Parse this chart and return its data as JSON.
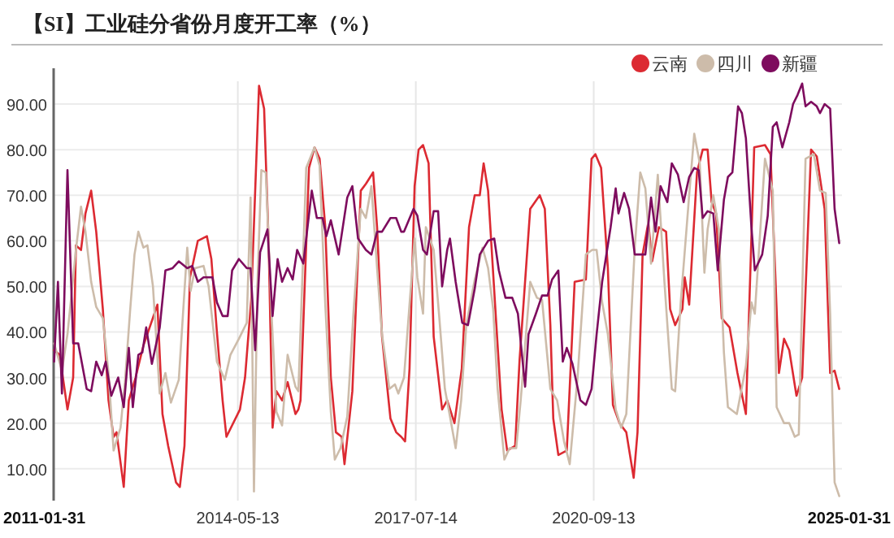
{
  "chart_data": {
    "type": "line",
    "title": "【SI】工业硅分省份月度开工率（%）",
    "xlim": [
      "2011-01-31",
      "2025-02-14"
    ],
    "ylim": [
      3,
      95
    ],
    "xticks": [
      "2011-01-31",
      "2014-05-13",
      "2017-07-14",
      "2020-09-13",
      "2025-01-31"
    ],
    "yticks": [
      {
        "value": 10,
        "label": "10.00"
      },
      {
        "value": 20,
        "label": "20.00"
      },
      {
        "value": 30,
        "label": "30.00"
      },
      {
        "value": 40,
        "label": "40.00"
      },
      {
        "value": 50,
        "label": "50.00"
      },
      {
        "value": 60,
        "label": "60.00"
      },
      {
        "value": 70,
        "label": "70.00"
      },
      {
        "value": 80,
        "label": "80.00"
      },
      {
        "value": 90,
        "label": "90.00"
      }
    ],
    "grid": true,
    "legend": "top right",
    "marker": "none",
    "line_style": "solid",
    "series": [
      {
        "name": "云南",
        "color": "#dc2a32",
        "x": [
          "2011-02-03",
          "2011-03-11",
          "2011-05-01",
          "2011-06-07",
          "2011-06-25",
          "2011-07-28",
          "2011-08-26",
          "2011-10-02",
          "2011-11-04",
          "2011-12-17",
          "2012-01-23",
          "2012-02-25",
          "2012-03-15",
          "2012-05-01",
          "2012-06-03",
          "2012-07-17",
          "2012-09-06",
          "2012-12-06",
          "2013-01-08",
          "2013-02-14",
          "2013-04-06",
          "2013-05-01",
          "2013-05-31",
          "2013-07-06",
          "2013-08-26",
          "2013-10-24",
          "2013-11-22",
          "2013-12-28",
          "2014-02-03",
          "2014-02-28",
          "2014-05-27",
          "2014-06-29",
          "2014-08-08",
          "2014-09-28",
          "2014-10-31",
          "2014-11-29",
          "2014-12-25",
          "2015-01-19",
          "2015-02-25",
          "2015-04-02",
          "2015-05-23",
          "2015-06-11",
          "2015-06-25",
          "2015-08-19",
          "2015-09-24",
          "2015-10-27",
          "2015-12-03",
          "2016-01-08",
          "2016-02-10",
          "2016-03-19",
          "2016-04-06",
          "2016-05-27",
          "2016-07-21",
          "2016-08-23",
          "2016-10-09",
          "2016-11-04",
          "2016-12-06",
          "2017-01-30",
          "2017-03-08",
          "2017-04-10",
          "2017-05-05",
          "2017-06-03",
          "2017-07-06",
          "2017-08-01",
          "2017-08-30",
          "2017-10-05",
          "2017-11-07",
          "2018-01-01",
          "2018-02-03",
          "2018-03-22",
          "2018-05-09",
          "2018-06-25",
          "2018-08-01",
          "2018-09-03",
          "2018-09-28",
          "2018-10-27",
          "2018-12-17",
          "2019-01-23",
          "2019-02-28",
          "2019-04-21",
          "2019-05-20",
          "2019-07-28",
          "2019-09-28",
          "2019-10-31",
          "2019-12-06",
          "2019-12-25",
          "2020-01-27",
          "2020-03-22",
          "2020-05-12",
          "2020-07-24",
          "2020-08-30",
          "2020-09-24",
          "2020-10-31",
          "2020-12-14",
          "2021-01-16",
          "2021-02-28",
          "2021-04-13",
          "2021-05-31",
          "2021-06-25",
          "2021-07-28",
          "2021-09-03",
          "2021-09-28",
          "2021-11-11",
          "2021-12-28",
          "2022-01-23",
          "2022-02-25",
          "2022-04-13",
          "2022-04-28",
          "2022-05-27",
          "2022-07-17",
          "2022-08-23",
          "2022-09-24",
          "2022-10-20",
          "2022-11-18",
          "2022-12-25",
          "2023-02-14",
          "2023-04-06",
          "2023-05-31",
          "2023-07-24",
          "2023-10-02",
          "2023-11-07",
          "2023-12-10",
          "2024-01-01",
          "2024-02-03",
          "2024-03-08",
          "2024-04-24",
          "2024-05-31",
          "2024-07-28",
          "2024-09-03",
          "2024-10-24",
          "2024-11-29",
          "2024-12-28",
          "2025-01-27"
        ],
        "values": [
          36,
          35,
          23,
          30,
          59,
          58,
          66,
          71,
          62,
          45,
          25,
          17,
          18,
          6,
          25,
          30,
          37,
          46,
          22,
          15,
          7,
          6,
          15,
          52,
          60,
          61,
          56,
          40,
          25,
          17,
          23,
          30,
          47,
          94,
          89,
          60,
          19,
          27,
          25,
          29,
          22,
          23,
          25,
          76,
          80.5,
          78,
          63,
          30,
          18,
          17,
          11,
          27,
          71,
          72.5,
          75,
          63,
          39,
          21,
          18,
          17,
          16,
          32,
          72,
          80,
          81,
          77,
          39,
          23,
          25,
          20,
          32,
          63,
          70,
          70,
          77,
          71,
          43,
          23,
          14,
          15,
          34,
          67,
          70,
          67,
          41.5,
          21,
          13,
          14,
          51,
          51.5,
          78,
          79,
          76,
          54,
          24,
          20,
          18,
          8,
          18,
          57,
          64,
          55.5,
          63,
          62,
          45,
          41.5,
          45,
          52,
          46,
          75,
          80,
          80,
          68.5,
          66,
          43,
          41,
          31,
          22,
          80.5,
          81,
          79,
          51,
          31,
          38.5,
          36,
          26,
          30,
          80,
          78.5,
          67,
          31,
          31.5,
          27.5
        ]
      },
      {
        "name": "四川",
        "color": "#cdbcaa",
        "x": [
          "2011-02-03",
          "2011-03-26",
          "2011-05-01",
          "2011-06-25",
          "2011-07-28",
          "2011-08-26",
          "2011-10-02",
          "2011-11-04",
          "2011-12-17",
          "2012-01-23",
          "2012-02-25",
          "2012-04-10",
          "2012-05-09",
          "2012-06-11",
          "2012-07-10",
          "2012-08-04",
          "2012-09-06",
          "2012-10-02",
          "2012-11-07",
          "2012-12-21",
          "2013-01-27",
          "2013-03-04",
          "2013-04-24",
          "2013-06-18",
          "2013-07-10",
          "2013-08-08",
          "2013-10-02",
          "2013-11-04",
          "2013-12-28",
          "2014-02-17",
          "2014-03-26",
          "2014-05-20",
          "2014-07-10",
          "2014-08-04",
          "2014-08-26",
          "2014-09-17",
          "2014-10-13",
          "2014-11-11",
          "2014-12-17",
          "2015-01-19",
          "2015-02-25",
          "2015-04-02",
          "2015-05-23",
          "2015-06-11",
          "2015-08-01",
          "2015-09-24",
          "2015-10-27",
          "2015-12-03",
          "2016-01-08",
          "2016-02-03",
          "2016-03-11",
          "2016-04-24",
          "2016-06-03",
          "2016-07-21",
          "2016-08-23",
          "2016-09-28",
          "2016-11-04",
          "2016-12-06",
          "2017-01-23",
          "2017-02-28",
          "2017-03-22",
          "2017-04-28",
          "2017-06-03",
          "2017-07-06",
          "2017-07-24",
          "2017-08-30",
          "2017-09-17",
          "2017-11-07",
          "2017-12-14",
          "2018-01-19",
          "2018-02-21",
          "2018-03-30",
          "2018-05-05",
          "2018-06-07",
          "2018-08-01",
          "2018-09-21",
          "2018-10-27",
          "2018-11-29",
          "2018-12-28",
          "2019-02-10",
          "2019-03-15",
          "2019-04-28",
          "2019-05-27",
          "2019-07-28",
          "2019-09-10",
          "2019-10-13",
          "2019-12-06",
          "2020-01-19",
          "2020-03-04",
          "2020-04-10",
          "2020-05-31",
          "2020-07-24",
          "2020-09-03",
          "2020-10-02",
          "2020-11-07",
          "2020-12-14",
          "2021-02-03",
          "2021-03-11",
          "2021-04-13",
          "2021-06-07",
          "2021-07-13",
          "2021-08-15",
          "2021-09-21",
          "2021-11-04",
          "2021-12-17",
          "2022-02-03",
          "2022-02-25",
          "2022-04-02",
          "2022-05-27",
          "2022-06-29",
          "2022-08-04",
          "2022-09-03",
          "2022-09-24",
          "2022-10-31",
          "2022-12-06",
          "2023-01-08",
          "2023-02-03",
          "2023-04-02",
          "2023-05-31",
          "2023-07-06",
          "2023-07-28",
          "2023-10-02",
          "2023-11-22",
          "2023-12-17",
          "2024-02-03",
          "2024-03-08",
          "2024-04-13",
          "2024-05-09",
          "2024-06-22",
          "2024-08-15",
          "2024-09-24",
          "2024-10-31",
          "2024-11-29",
          "2024-12-28",
          "2025-01-27"
        ],
        "values": [
          37.5,
          31.5,
          39.5,
          58,
          67.5,
          62,
          51,
          45.5,
          43,
          31,
          14,
          19,
          29,
          44.5,
          57,
          62,
          58.5,
          59,
          50,
          26.5,
          31,
          24.5,
          29.5,
          58.5,
          49,
          54,
          54.5,
          50,
          33.5,
          29.5,
          35,
          38.5,
          42,
          69.5,
          5,
          50,
          75.5,
          75,
          45,
          22.5,
          19.5,
          35,
          28,
          27,
          76,
          80.5,
          76.5,
          46,
          22.5,
          12,
          14.5,
          21.5,
          44,
          67,
          65,
          72,
          54,
          39.5,
          27.5,
          28.5,
          26.5,
          30,
          46,
          60.5,
          52,
          44,
          63,
          58,
          43,
          27.5,
          21.5,
          14.5,
          25,
          41.5,
          51.5,
          58.5,
          54,
          45,
          27.5,
          12,
          14.5,
          14.5,
          25,
          51,
          47.5,
          47,
          27.5,
          25,
          16,
          11,
          30,
          57,
          58,
          58,
          46.5,
          39.5,
          23,
          19,
          22,
          58.5,
          75,
          71.5,
          55,
          74.5,
          51,
          27.5,
          27,
          46.5,
          70,
          83.5,
          77,
          53,
          62.5,
          70,
          62.5,
          35.5,
          23.5,
          22,
          32.5,
          46.5,
          44,
          78,
          71,
          23.5,
          20,
          20,
          17,
          17.5,
          78,
          79,
          71,
          70.5,
          44,
          7,
          4
        ]
      },
      {
        "name": "新疆",
        "color": "#7e0c5e",
        "x": [
          "2011-02-03",
          "2011-02-28",
          "2011-03-26",
          "2011-05-01",
          "2011-06-07",
          "2011-07-10",
          "2011-09-03",
          "2011-10-02",
          "2011-11-04",
          "2011-12-10",
          "2012-01-05",
          "2012-02-10",
          "2012-03-26",
          "2012-05-01",
          "2012-06-03",
          "2012-06-29",
          "2012-08-04",
          "2012-08-30",
          "2012-09-24",
          "2012-10-31",
          "2012-12-21",
          "2013-01-27",
          "2013-03-15",
          "2013-04-24",
          "2013-06-18",
          "2013-07-21",
          "2013-08-26",
          "2013-10-02",
          "2013-11-29",
          "2013-12-28",
          "2014-02-03",
          "2014-03-08",
          "2014-04-06",
          "2014-05-20",
          "2014-07-10",
          "2014-08-04",
          "2014-09-03",
          "2014-10-05",
          "2014-11-22",
          "2014-12-25",
          "2015-01-27",
          "2015-02-25",
          "2015-04-02",
          "2015-05-05",
          "2015-06-03",
          "2015-07-13",
          "2015-09-06",
          "2015-10-09",
          "2015-11-15",
          "2015-12-10",
          "2016-01-08",
          "2016-02-28",
          "2016-04-24",
          "2016-05-27",
          "2016-07-03",
          "2016-08-23",
          "2016-09-28",
          "2016-11-04",
          "2016-12-06",
          "2017-01-30",
          "2017-03-08",
          "2017-04-10",
          "2017-04-28",
          "2017-06-29",
          "2017-07-24",
          "2017-08-30",
          "2017-09-24",
          "2017-11-07",
          "2017-12-06",
          "2018-01-01",
          "2018-02-03",
          "2018-02-21",
          "2018-03-30",
          "2018-05-12",
          "2018-06-18",
          "2018-08-01",
          "2018-09-03",
          "2018-10-27",
          "2018-12-06",
          "2019-01-05",
          "2019-02-17",
          "2019-04-02",
          "2019-05-09",
          "2019-06-25",
          "2019-07-17",
          "2019-09-03",
          "2019-10-13",
          "2019-11-18",
          "2019-12-17",
          "2020-01-27",
          "2020-02-25",
          "2020-03-22",
          "2020-04-28",
          "2020-06-18",
          "2020-07-24",
          "2020-08-30",
          "2020-10-02",
          "2020-11-07",
          "2021-01-01",
          "2021-02-03",
          "2021-02-21",
          "2021-03-30",
          "2021-05-01",
          "2021-06-07",
          "2021-07-13",
          "2021-08-15",
          "2021-09-21",
          "2021-10-20",
          "2021-11-22",
          "2022-01-05",
          "2022-02-03",
          "2022-03-15",
          "2022-04-21",
          "2022-05-27",
          "2022-06-29",
          "2022-07-28",
          "2022-08-23",
          "2022-09-24",
          "2022-10-31",
          "2022-11-29",
          "2023-01-08",
          "2023-02-03",
          "2023-03-04",
          "2023-04-10",
          "2023-05-05",
          "2023-05-31",
          "2023-07-06",
          "2023-07-28",
          "2023-09-14",
          "2023-10-20",
          "2023-11-22",
          "2023-12-17",
          "2024-01-23",
          "2024-03-08",
          "2024-04-02",
          "2024-05-01",
          "2024-05-31",
          "2024-06-22",
          "2024-07-28",
          "2024-09-03",
          "2024-09-24",
          "2024-10-24",
          "2024-11-29",
          "2024-12-28",
          "2025-01-27"
        ],
        "values": [
          33.5,
          51,
          26.5,
          75.5,
          37.5,
          37.5,
          27.5,
          27,
          33.5,
          30.5,
          33.5,
          26,
          30,
          23.5,
          36.5,
          23.5,
          35,
          35.5,
          41,
          33,
          41,
          53.5,
          54,
          55.5,
          54,
          54.5,
          51,
          52,
          52,
          46.5,
          43.5,
          43.5,
          53.5,
          56,
          54,
          54,
          36,
          57.5,
          62.5,
          43.5,
          56,
          51,
          54,
          51.5,
          58,
          55,
          71,
          65,
          65,
          61,
          64.5,
          57,
          69.5,
          72,
          60.5,
          58,
          57,
          62,
          62,
          65,
          65,
          62,
          62,
          67,
          65.5,
          58,
          57,
          66.5,
          66.5,
          50,
          58,
          60.5,
          51,
          42,
          41.5,
          49.5,
          57,
          60,
          60.5,
          53.5,
          47.5,
          47.5,
          44,
          28,
          39.5,
          44,
          48,
          48,
          51.5,
          53.5,
          33.5,
          36.5,
          33,
          25,
          24,
          27.5,
          39.5,
          51,
          63,
          71.5,
          66,
          70.5,
          67,
          57,
          57,
          57,
          69.5,
          62,
          72,
          68.5,
          77,
          74.5,
          68.5,
          74,
          76,
          75.5,
          65,
          66.5,
          66,
          53.5,
          69,
          74,
          75,
          89.5,
          88,
          82.5,
          63,
          53.5,
          57,
          65.5,
          85,
          86,
          80.5,
          86,
          90,
          92,
          94.5,
          89.5,
          90.5,
          89.5,
          88,
          90,
          89,
          67,
          59.5
        ]
      }
    ]
  }
}
